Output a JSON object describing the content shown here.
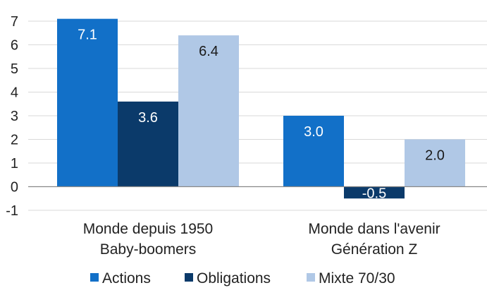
{
  "chart_data": {
    "type": "bar",
    "title": "",
    "xlabel": "",
    "ylabel": "",
    "ylim": [
      -1,
      7
    ],
    "yticks": [
      "7",
      "6",
      "5",
      "4",
      "3",
      "2",
      "1",
      "0",
      "-1"
    ],
    "grid": true,
    "legend_position": "bottom",
    "categories": [
      {
        "lines": [
          "Monde depuis 1950",
          "Baby-boomers"
        ]
      },
      {
        "lines": [
          "Monde dans l'avenir",
          "Génération Z"
        ]
      }
    ],
    "series": [
      {
        "name": "Actions",
        "color": "#1270c8",
        "values": [
          7.1,
          3.0
        ],
        "labels": [
          "7.1",
          "3.0"
        ],
        "label_color": "#ffffff"
      },
      {
        "name": "Obligations",
        "color": "#0b3a6a",
        "values": [
          3.6,
          -0.5
        ],
        "labels": [
          "3.6",
          "-0.5"
        ],
        "label_color": "#ffffff"
      },
      {
        "name": "Mixte 70/30",
        "color": "#b0c8e6",
        "values": [
          6.4,
          2.0
        ],
        "labels": [
          "6.4",
          "2.0"
        ],
        "label_color": "#1a1a1a"
      }
    ]
  }
}
